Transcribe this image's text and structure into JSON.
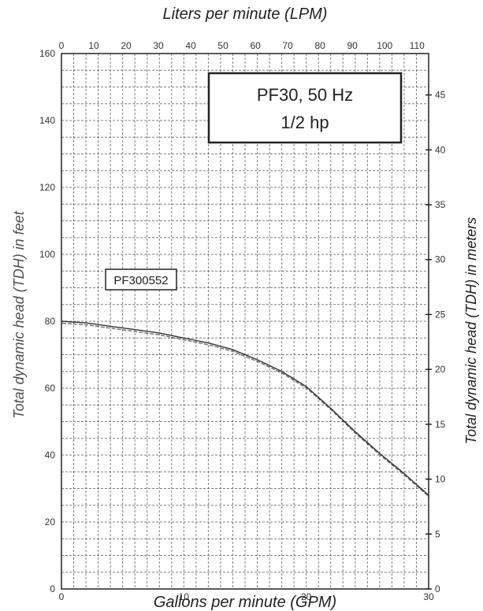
{
  "chart_data": {
    "type": "line",
    "title": "PF30, 50 Hz",
    "subtitle": "1/2 hp",
    "series": [
      {
        "name": "PF300552",
        "x": [
          0,
          2,
          4,
          6,
          8,
          10,
          12,
          14,
          16,
          18,
          20,
          22,
          24,
          26,
          28,
          30
        ],
        "y": [
          80,
          79.5,
          78.5,
          77.5,
          76.5,
          75,
          73.5,
          71.5,
          68.5,
          65,
          60.5,
          54,
          47,
          40.5,
          34.5,
          28
        ]
      }
    ],
    "x_axis": {
      "label": "Gallons per minute (GPM)",
      "range": [
        0,
        30
      ],
      "ticks": [
        0,
        10,
        20,
        30
      ]
    },
    "x2_axis": {
      "label": "Liters per minute (LPM)",
      "range": [
        0,
        113.6
      ],
      "ticks": [
        0,
        10,
        20,
        30,
        40,
        50,
        60,
        70,
        80,
        90,
        100,
        110
      ]
    },
    "y_axis": {
      "label": "Total dynamic head (TDH) in feet",
      "range": [
        0,
        160
      ],
      "ticks": [
        0,
        20,
        40,
        60,
        80,
        100,
        120,
        140,
        160
      ]
    },
    "y2_axis": {
      "label": "Total dynamic head (TDH) in meters",
      "range": [
        0,
        48.77
      ],
      "ticks": [
        0,
        5,
        10,
        15,
        20,
        25,
        30,
        35,
        40,
        45
      ]
    },
    "grid": true
  },
  "labels": {
    "title_line1": "PF30, 50 Hz",
    "title_line2": "1/2 hp",
    "series_box": "PF300552",
    "x_title": "Gallons per minute (GPM)",
    "x2_title": "Liters per minute (LPM)",
    "y_title": "Total dynamic head (TDH) in feet",
    "y2_title": "Total dynamic head (TDH) in meters"
  }
}
